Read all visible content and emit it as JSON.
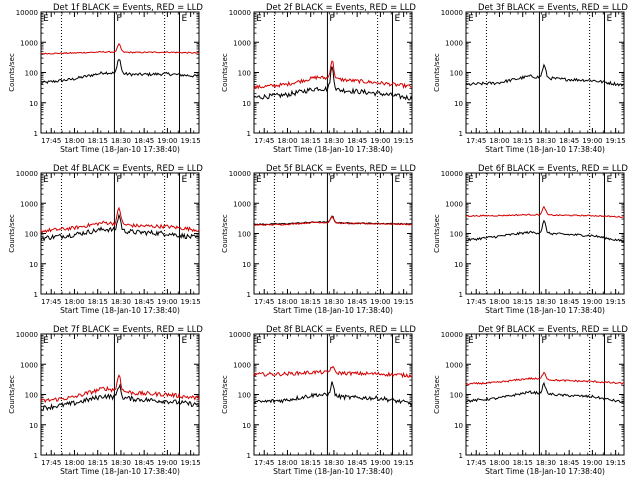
{
  "figure": {
    "colors": {
      "events": "#000000",
      "lld": "#d40000",
      "axis": "#000000"
    },
    "y_range": [
      1,
      10000
    ],
    "x_range": [
      17.64,
      19.34
    ],
    "x_tick_values": [
      17.75,
      18.0,
      18.25,
      18.5,
      18.75,
      19.0,
      19.25
    ],
    "x_tick_labels": [
      "17:45",
      "18:00",
      "18:15",
      "18:30",
      "18:45",
      "19:00",
      "19:15"
    ],
    "y_tick_values": [
      1,
      10,
      100,
      1000,
      10000
    ],
    "y_tick_labels": [
      "1",
      "10",
      "100",
      "1000",
      "10000"
    ],
    "dotted_lines_x": [
      17.86,
      18.97
    ],
    "solid_lines_x": [
      18.43,
      19.13
    ],
    "markers": [
      {
        "x": 18.43,
        "label": "F"
      },
      {
        "x": 19.13,
        "label": "E"
      },
      {
        "x": 17.64,
        "label": "E"
      }
    ],
    "flare_peak_x": 18.48
  },
  "chart_data": [
    {
      "type": "line",
      "title": "Det 1f BLACK = Events, RED = LLD",
      "xlabel": "Start Time (18-Jan-10 17:38:40)",
      "ylabel": "Counts/sec",
      "ylim": [
        1,
        10000
      ],
      "series": [
        {
          "name": "Events",
          "color": "black",
          "base": [
            45,
            60,
            100,
            85,
            90,
            75
          ],
          "peak": 300,
          "noise": 0.05
        },
        {
          "name": "LLD",
          "color": "red",
          "base": [
            420,
            440,
            480,
            460,
            470,
            440
          ],
          "peak": 850,
          "noise": 0.02
        }
      ]
    },
    {
      "type": "line",
      "title": "Det 2f BLACK = Events, RED = LLD",
      "xlabel": "Start Time (18-Jan-10 17:38:40)",
      "ylabel": "Counts/sec",
      "ylim": [
        1,
        10000
      ],
      "series": [
        {
          "name": "Events",
          "color": "black",
          "base": [
            15,
            18,
            30,
            25,
            20,
            14
          ],
          "peak": 150,
          "noise": 0.08
        },
        {
          "name": "LLD",
          "color": "red",
          "base": [
            32,
            40,
            70,
            55,
            45,
            34
          ],
          "peak": 250,
          "noise": 0.06
        }
      ]
    },
    {
      "type": "line",
      "title": "Det 3f BLACK = Events, RED = LLD",
      "xlabel": "Start Time (18-Jan-10 17:38:40)",
      "ylabel": "Counts/sec",
      "ylim": [
        1,
        10000
      ],
      "series": [
        {
          "name": "Events",
          "color": "black",
          "base": [
            40,
            45,
            75,
            60,
            55,
            38
          ],
          "peak": 170,
          "noise": 0.05
        }
      ]
    },
    {
      "type": "line",
      "title": "Det 4f BLACK = Events, RED = LLD",
      "xlabel": "Start Time (18-Jan-10 17:38:40)",
      "ylabel": "Counts/sec",
      "ylim": [
        1,
        10000
      ],
      "series": [
        {
          "name": "Events",
          "color": "black",
          "base": [
            70,
            90,
            140,
            110,
            100,
            70
          ],
          "peak": 400,
          "noise": 0.08
        },
        {
          "name": "LLD",
          "color": "red",
          "base": [
            120,
            150,
            230,
            180,
            170,
            130
          ],
          "peak": 700,
          "noise": 0.06
        }
      ]
    },
    {
      "type": "line",
      "title": "Det 5f BLACK = Events, RED = LLD",
      "xlabel": "Start Time (18-Jan-10 17:38:40)",
      "ylabel": "Counts/sec",
      "ylim": [
        1,
        10000
      ],
      "series": [
        {
          "name": "Events",
          "color": "black",
          "base": [
            200,
            210,
            240,
            220,
            215,
            205
          ],
          "peak": 380,
          "noise": 0.02
        },
        {
          "name": "LLD",
          "color": "red",
          "base": [
            190,
            200,
            235,
            215,
            210,
            200
          ],
          "peak": 360,
          "noise": 0.02
        }
      ]
    },
    {
      "type": "line",
      "title": "Det 6f BLACK = Events, RED = LLD",
      "xlabel": "Start Time (18-Jan-10 17:38:40)",
      "ylabel": "Counts/sec",
      "ylim": [
        1,
        10000
      ],
      "series": [
        {
          "name": "Events",
          "color": "black",
          "base": [
            60,
            80,
            110,
            95,
            85,
            55
          ],
          "peak": 250,
          "noise": 0.04
        },
        {
          "name": "LLD",
          "color": "red",
          "base": [
            380,
            390,
            420,
            400,
            390,
            350
          ],
          "peak": 750,
          "noise": 0.02
        }
      ]
    },
    {
      "type": "line",
      "title": "Det 7f BLACK = Events, RED = LLD",
      "xlabel": "Start Time (18-Jan-10 17:38:40)",
      "ylabel": "Counts/sec",
      "ylim": [
        1,
        10000
      ],
      "series": [
        {
          "name": "Events",
          "color": "black",
          "base": [
            35,
            50,
            90,
            70,
            60,
            45
          ],
          "peak": 200,
          "noise": 0.08
        },
        {
          "name": "LLD",
          "color": "red",
          "base": [
            60,
            80,
            160,
            110,
            100,
            75
          ],
          "peak": 450,
          "noise": 0.07
        }
      ]
    },
    {
      "type": "line",
      "title": "Det 8f BLACK = Events, RED = LLD",
      "xlabel": "Start Time (18-Jan-10 17:38:40)",
      "ylabel": "Counts/sec",
      "ylim": [
        1,
        10000
      ],
      "series": [
        {
          "name": "Events",
          "color": "black",
          "base": [
            55,
            65,
            100,
            80,
            75,
            50
          ],
          "peak": 240,
          "noise": 0.07
        },
        {
          "name": "LLD",
          "color": "red",
          "base": [
            460,
            480,
            550,
            500,
            480,
            420
          ],
          "peak": 850,
          "noise": 0.06
        }
      ]
    },
    {
      "type": "line",
      "title": "Det 9f BLACK = Events, RED = LLD",
      "xlabel": "Start Time (18-Jan-10 17:38:40)",
      "ylabel": "Counts/sec",
      "ylim": [
        1,
        10000
      ],
      "series": [
        {
          "name": "Events",
          "color": "black",
          "base": [
            60,
            75,
            120,
            95,
            85,
            55
          ],
          "peak": 220,
          "noise": 0.04
        },
        {
          "name": "LLD",
          "color": "red",
          "base": [
            220,
            250,
            340,
            290,
            270,
            230
          ],
          "peak": 550,
          "noise": 0.03
        }
      ]
    }
  ]
}
